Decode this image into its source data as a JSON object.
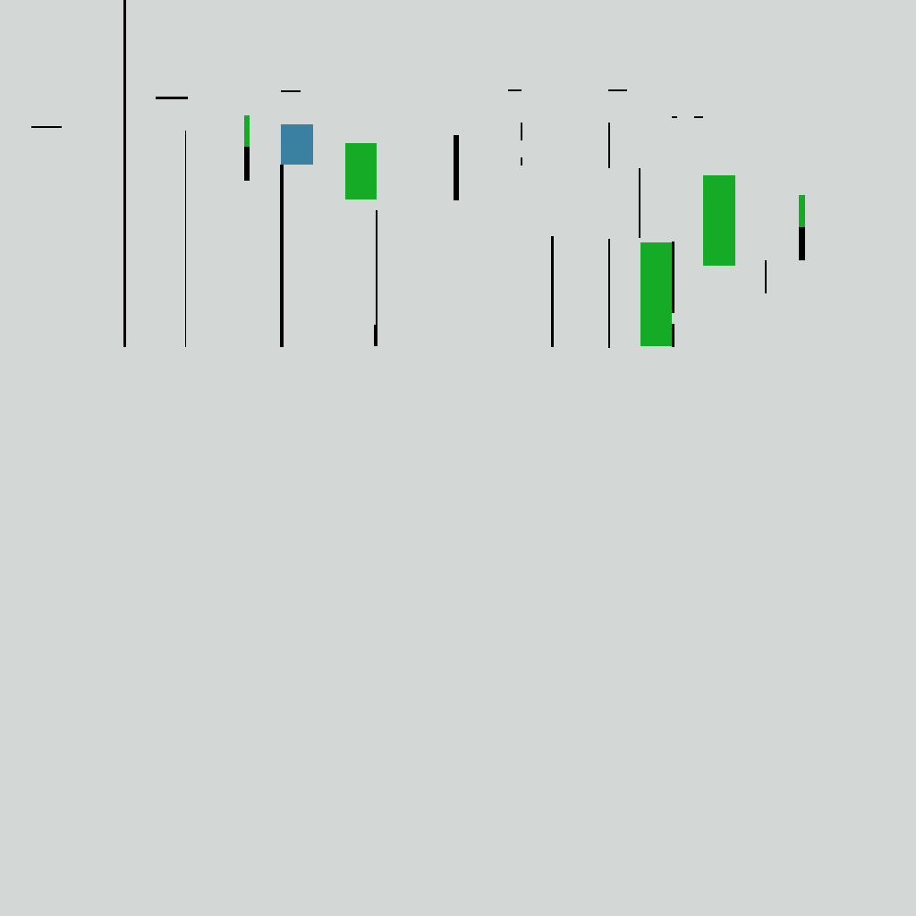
{
  "colors": {
    "background": "#D3D8D7",
    "line": "#000000",
    "green": "#16AB26",
    "blue": "#3A80A0"
  }
}
